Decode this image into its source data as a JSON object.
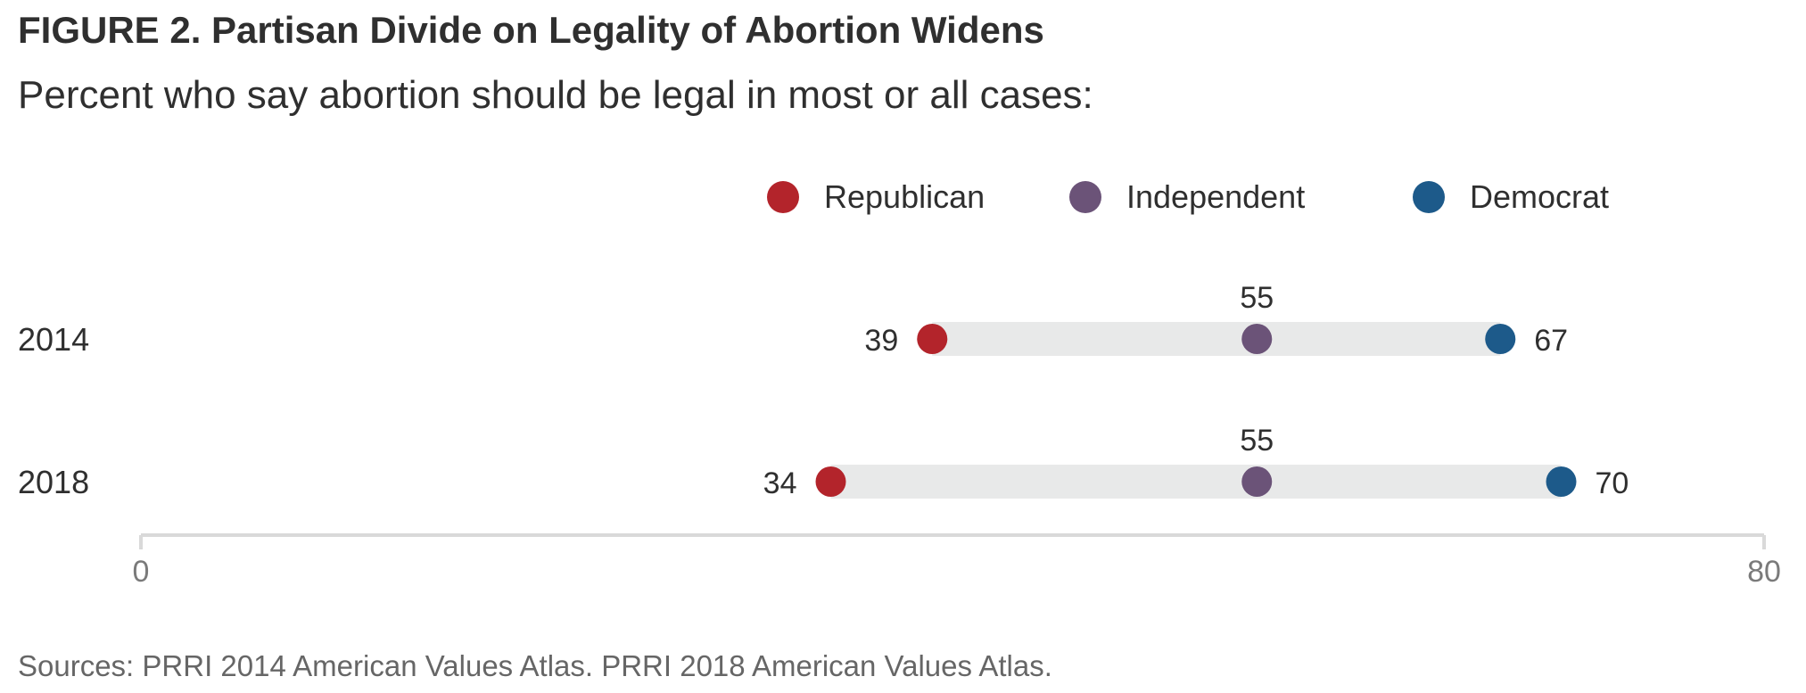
{
  "header": {
    "title": "FIGURE 2. Partisan Divide on Legality of Abortion Widens",
    "subtitle": "Percent who say abortion should be legal in most or all cases:"
  },
  "footer": {
    "source": "Sources: PRRI 2014 American Values Atlas. PRRI 2018 American Values Atlas."
  },
  "chart_data": {
    "type": "dot-range",
    "title": "FIGURE 2. Partisan Divide on Legality of Abortion Widens",
    "subtitle": "Percent who say abortion should be legal in most or all cases:",
    "categories": [
      "2014",
      "2018"
    ],
    "series": [
      {
        "name": "Republican",
        "color": "#b3242b",
        "values": [
          39,
          34
        ]
      },
      {
        "name": "Independent",
        "color": "#6b5378",
        "values": [
          55,
          55
        ]
      },
      {
        "name": "Democrat",
        "color": "#1d5a8a",
        "values": [
          67,
          70
        ]
      }
    ],
    "xlim": [
      0,
      80
    ],
    "xticks": [
      "0",
      "80"
    ],
    "legend_position": "top-center",
    "grid": false,
    "range_bar_color": "#e8e9e9",
    "axis_color": "#d9d9d9"
  }
}
